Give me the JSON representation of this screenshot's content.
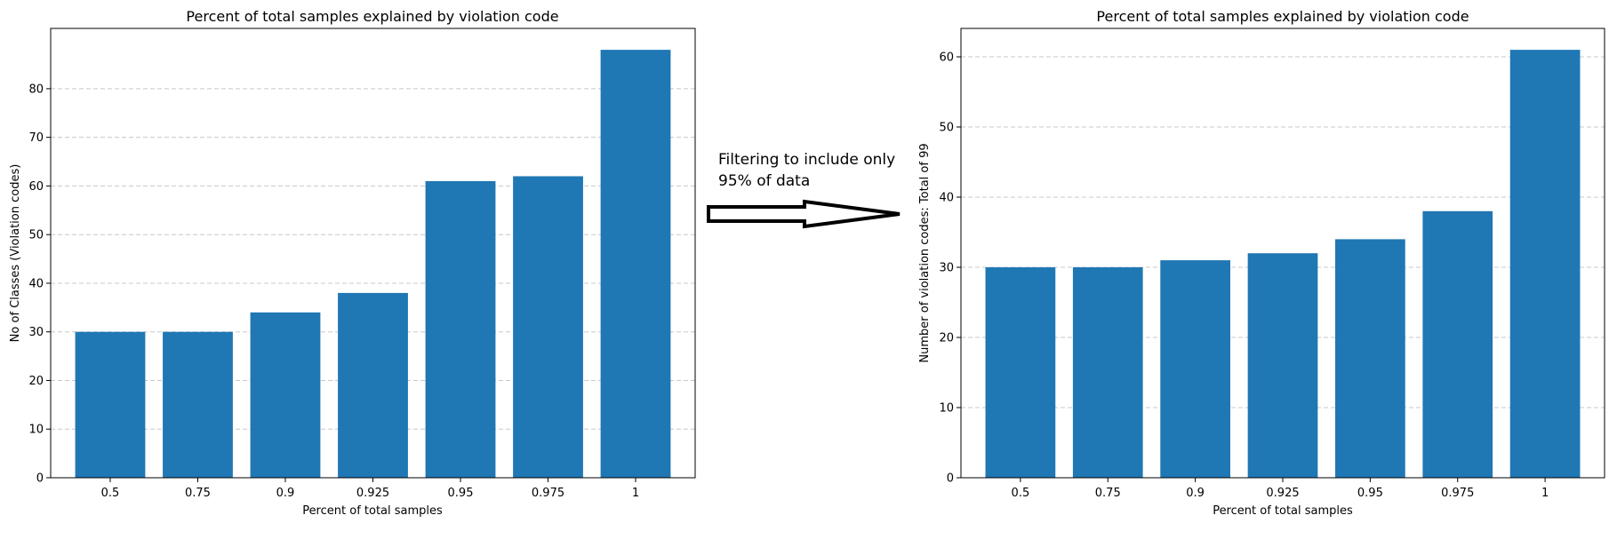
{
  "annotation": {
    "line1": "Filtering to include only",
    "line2": "95% of data"
  },
  "colors": {
    "bar": "#1f77b4",
    "grid": "#c8c8c8",
    "axis": "#000000"
  },
  "chart_data": [
    {
      "type": "bar",
      "title": "Percent of total samples explained by violation code",
      "xlabel": "Percent of total samples",
      "ylabel": "No of Classes (Violation codes)",
      "categories": [
        "0.5",
        "0.75",
        "0.9",
        "0.925",
        "0.95",
        "0.975",
        "1"
      ],
      "values": [
        30,
        30,
        34,
        38,
        61,
        62,
        88
      ],
      "ylim": [
        0,
        92.4
      ],
      "yticks": [
        0,
        10,
        20,
        30,
        40,
        50,
        60,
        70,
        80
      ],
      "grid": "y-dashed"
    },
    {
      "type": "bar",
      "title": "Percent of total samples explained by violation code",
      "xlabel": "Percent of total samples",
      "ylabel": "Number of violation codes: Total of 99",
      "categories": [
        "0.5",
        "0.75",
        "0.9",
        "0.925",
        "0.95",
        "0.975",
        "1"
      ],
      "values": [
        30,
        30,
        31,
        32,
        34,
        38,
        61
      ],
      "ylim": [
        0,
        64.05
      ],
      "yticks": [
        0,
        10,
        20,
        30,
        40,
        50,
        60
      ],
      "grid": "y-dashed"
    }
  ]
}
